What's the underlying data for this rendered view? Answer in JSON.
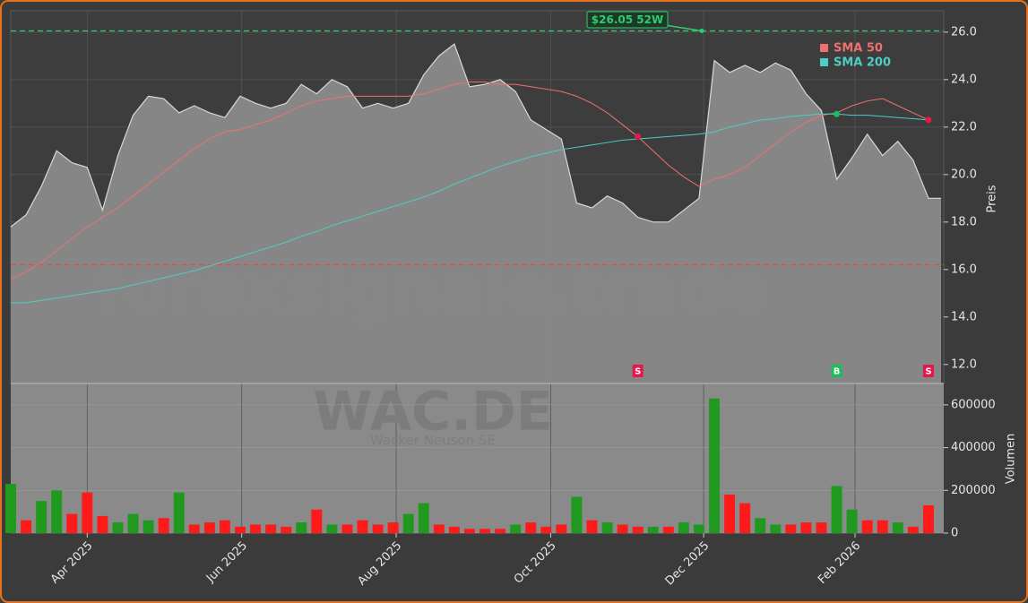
{
  "chart_data": {
    "type": "area",
    "title": "WAC.DE",
    "subtitle": "Wacker Neuson SE",
    "watermark": "forexsignale.trade",
    "ylabel": "Preis",
    "color": "#8a8a8a",
    "line_color": "#d8d8d8",
    "grid": true,
    "legend": "upper right",
    "categories": [
      null,
      null,
      null,
      null,
      null,
      null,
      null,
      null,
      null,
      null,
      null,
      null,
      null,
      null,
      null,
      null,
      null,
      null,
      null,
      null,
      null,
      null,
      null,
      null,
      null,
      null,
      null,
      null,
      null,
      null,
      null,
      null,
      null,
      null,
      null,
      null,
      null,
      null,
      null,
      null,
      null,
      null,
      null,
      null,
      null,
      null,
      null,
      null,
      null,
      null,
      null,
      null,
      null,
      null,
      null,
      null,
      null,
      null,
      null,
      null,
      null
    ],
    "xlim": [
      0,
      61
    ],
    "xticks": [
      {
        "value": 5,
        "label": "Apr 2025"
      },
      {
        "value": 15.1,
        "label": "Jun 2025"
      },
      {
        "value": 25.2,
        "label": "Aug 2025"
      },
      {
        "value": 35.3,
        "label": "Oct 2025"
      },
      {
        "value": 45.3,
        "label": "Dec 2025"
      },
      {
        "value": 55.2,
        "label": "Feb 2026"
      }
    ],
    "ylim": [
      11.2,
      26.9
    ],
    "yticks": [
      {
        "value": 12,
        "label": "12.0"
      },
      {
        "value": 14,
        "label": "14.0"
      },
      {
        "value": 16,
        "label": "16.0"
      },
      {
        "value": 18,
        "label": "18.0"
      },
      {
        "value": 20,
        "label": "20.0"
      },
      {
        "value": 22,
        "label": "22.0"
      },
      {
        "value": 24,
        "label": "24.0"
      },
      {
        "value": 26,
        "label": "26.0"
      }
    ],
    "values": [
      17.8,
      18.3,
      19.5,
      21.0,
      20.5,
      20.3,
      18.5,
      20.8,
      22.5,
      23.3,
      23.2,
      22.6,
      22.9,
      22.6,
      22.4,
      23.3,
      23.0,
      22.8,
      23.0,
      23.8,
      23.4,
      24.0,
      23.7,
      22.8,
      23.0,
      22.8,
      23.0,
      24.2,
      25.0,
      25.5,
      23.7,
      23.8,
      24.0,
      23.5,
      22.3,
      21.9,
      21.5,
      18.8,
      18.6,
      19.1,
      18.8,
      18.2,
      18.0,
      18.0,
      18.5,
      19.0,
      24.8,
      24.3,
      24.6,
      24.3,
      24.7,
      24.4,
      23.4,
      22.7,
      19.8,
      20.7,
      21.7,
      20.8,
      21.4,
      20.6,
      19.0
    ],
    "series": [
      {
        "name": "SMA 50",
        "color": "#f07070",
        "values": [
          15.6,
          15.9,
          16.3,
          16.8,
          17.3,
          17.8,
          18.2,
          18.6,
          19.1,
          19.6,
          20.1,
          20.6,
          21.1,
          21.5,
          21.8,
          21.9,
          22.1,
          22.3,
          22.6,
          22.9,
          23.1,
          23.2,
          23.3,
          23.3,
          23.3,
          23.3,
          23.3,
          23.4,
          23.6,
          23.8,
          23.9,
          23.9,
          23.8,
          23.8,
          23.7,
          23.6,
          23.5,
          23.3,
          23.0,
          22.6,
          22.1,
          21.6,
          21.0,
          20.4,
          19.9,
          19.5,
          19.8,
          20.0,
          20.3,
          20.8,
          21.3,
          21.8,
          22.2,
          22.5,
          22.6,
          22.9,
          23.1,
          23.2,
          22.9,
          22.6,
          22.3
        ]
      },
      {
        "name": "SMA 200",
        "color": "#4ecdc4",
        "values": [
          14.6,
          14.6,
          14.7,
          14.8,
          14.9,
          15.0,
          15.1,
          15.2,
          15.35,
          15.5,
          15.65,
          15.8,
          15.95,
          16.15,
          16.35,
          16.55,
          16.75,
          16.95,
          17.15,
          17.4,
          17.6,
          17.85,
          18.05,
          18.25,
          18.45,
          18.65,
          18.85,
          19.05,
          19.3,
          19.6,
          19.85,
          20.1,
          20.35,
          20.55,
          20.75,
          20.9,
          21.05,
          21.15,
          21.25,
          21.35,
          21.45,
          21.5,
          21.55,
          21.6,
          21.65,
          21.7,
          21.8,
          22.0,
          22.15,
          22.3,
          22.35,
          22.45,
          22.5,
          22.55,
          22.55,
          22.5,
          22.5,
          22.45,
          22.4,
          22.35,
          22.3
        ]
      }
    ],
    "hlines": [
      {
        "value": 26.05,
        "color": "#2ecc71",
        "label": "$26.05 52W"
      },
      {
        "value": 16.2,
        "color": "#e74c3c"
      }
    ],
    "signals": [
      {
        "x": 41,
        "label": "S",
        "color": "#e8174a",
        "series": 0
      },
      {
        "x": 54,
        "label": "B",
        "color": "#17c05a",
        "series": 1
      },
      {
        "x": 60,
        "label": "S",
        "color": "#e8174a",
        "series": 0
      }
    ],
    "volume": {
      "ylabel": "Volumen",
      "ylim": [
        0,
        700000
      ],
      "yticks": [
        0,
        200000,
        400000,
        600000
      ],
      "values": [
        230000,
        60000,
        150000,
        200000,
        90000,
        190000,
        80000,
        50000,
        90000,
        60000,
        70000,
        190000,
        40000,
        50000,
        60000,
        30000,
        40000,
        40000,
        30000,
        50000,
        110000,
        40000,
        40000,
        60000,
        40000,
        50000,
        90000,
        140000,
        40000,
        30000,
        20000,
        20000,
        20000,
        40000,
        50000,
        30000,
        40000,
        170000,
        60000,
        50000,
        40000,
        30000,
        30000,
        30000,
        50000,
        40000,
        630000,
        180000,
        140000,
        70000,
        40000,
        40000,
        50000,
        50000,
        220000,
        110000,
        60000,
        60000,
        50000,
        30000,
        130000
      ],
      "colors": [
        "#1f9a1f",
        "#ff1a1a",
        "#1f9a1f",
        "#1f9a1f",
        "#ff1a1a",
        "#ff1a1a",
        "#ff1a1a",
        "#1f9a1f",
        "#1f9a1f",
        "#1f9a1f",
        "#ff1a1a",
        "#1f9a1f",
        "#ff1a1a",
        "#ff1a1a",
        "#ff1a1a",
        "#ff1a1a",
        "#ff1a1a",
        "#ff1a1a",
        "#ff1a1a",
        "#1f9a1f",
        "#ff1a1a",
        "#1f9a1f",
        "#ff1a1a",
        "#ff1a1a",
        "#ff1a1a",
        "#ff1a1a",
        "#1f9a1f",
        "#1f9a1f",
        "#ff1a1a",
        "#ff1a1a",
        "#ff1a1a",
        "#ff1a1a",
        "#ff1a1a",
        "#1f9a1f",
        "#ff1a1a",
        "#ff1a1a",
        "#ff1a1a",
        "#1f9a1f",
        "#ff1a1a",
        "#1f9a1f",
        "#ff1a1a",
        "#ff1a1a",
        "#1f9a1f",
        "#ff1a1a",
        "#1f9a1f",
        "#1f9a1f",
        "#1f9a1f",
        "#ff1a1a",
        "#ff1a1a",
        "#1f9a1f",
        "#1f9a1f",
        "#ff1a1a",
        "#ff1a1a",
        "#ff1a1a",
        "#1f9a1f",
        "#1f9a1f",
        "#ff1a1a",
        "#ff1a1a",
        "#1f9a1f",
        "#ff1a1a",
        "#ff1a1a"
      ]
    }
  }
}
